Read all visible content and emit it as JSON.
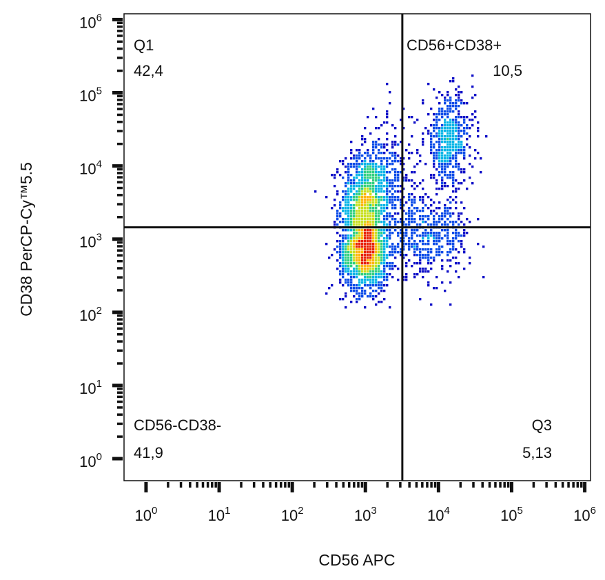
{
  "chart_data": {
    "type": "scatter",
    "subtype": "flow-cytometry-density-dot-plot",
    "xlabel": "CD56 APC",
    "ylabel": "CD38 PerCP-Cy™5.5",
    "x_scale": "log",
    "y_scale": "log",
    "xlim": [
      0.5,
      1200000
    ],
    "ylim": [
      0.5,
      1200000
    ],
    "x_ticks": [
      {
        "base": "10",
        "exp": "0",
        "value": 1
      },
      {
        "base": "10",
        "exp": "1",
        "value": 10
      },
      {
        "base": "10",
        "exp": "2",
        "value": 100
      },
      {
        "base": "10",
        "exp": "3",
        "value": 1000
      },
      {
        "base": "10",
        "exp": "4",
        "value": 10000
      },
      {
        "base": "10",
        "exp": "5",
        "value": 100000
      },
      {
        "base": "10",
        "exp": "6",
        "value": 1000000
      }
    ],
    "y_ticks": [
      {
        "base": "10",
        "exp": "0",
        "value": 1
      },
      {
        "base": "10",
        "exp": "1",
        "value": 10
      },
      {
        "base": "10",
        "exp": "2",
        "value": 100
      },
      {
        "base": "10",
        "exp": "3",
        "value": 1000
      },
      {
        "base": "10",
        "exp": "4",
        "value": 10000
      },
      {
        "base": "10",
        "exp": "5",
        "value": 100000
      },
      {
        "base": "10",
        "exp": "6",
        "value": 1000000
      }
    ],
    "gate": {
      "x": 3200,
      "y": 1450
    },
    "quadrants": [
      {
        "name": "Q1",
        "value": "42,4",
        "corner": "top-left"
      },
      {
        "name": "CD56+CD38+",
        "value": "10,5",
        "corner": "top-right"
      },
      {
        "name": "CD56-CD38-",
        "value": "41,9",
        "corner": "bottom-left"
      },
      {
        "name": "Q3",
        "value": "5,13",
        "corner": "bottom-right"
      }
    ],
    "populations": [
      {
        "cx": 1000,
        "cy": 3200,
        "sdx": 0.17,
        "sdy": 0.34,
        "n": 1100
      },
      {
        "cx": 1000,
        "cy": 650,
        "sdx": 0.17,
        "sdy": 0.26,
        "n": 1300
      },
      {
        "cx": 14000,
        "cy": 22000,
        "sdx": 0.17,
        "sdy": 0.32,
        "n": 520
      },
      {
        "cx": 7000,
        "cy": 1100,
        "sdx": 0.3,
        "sdy": 0.27,
        "n": 500
      },
      {
        "cx": 2200,
        "cy": 8000,
        "sdx": 0.18,
        "sdy": 0.45,
        "n": 260
      }
    ],
    "color_scale": [
      "#1010c8",
      "#0a4be8",
      "#00b4e6",
      "#30d080",
      "#c8e020",
      "#ffb400",
      "#e82000"
    ],
    "grid": false,
    "legend": "none"
  }
}
